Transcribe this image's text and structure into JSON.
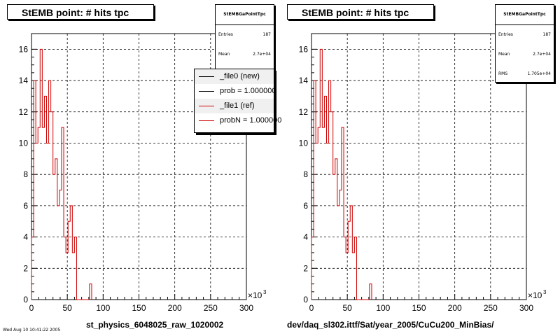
{
  "panels": [
    {
      "title": "StEMB point: # hits tpc",
      "x_axis_title": "st_physics_6048025_raw_1020002",
      "stats": {
        "name": "StEMBGaPointTpc",
        "rows": [
          {
            "label": "Entries",
            "value": "187"
          },
          {
            "label": "Mean",
            "value": "2.7e+04"
          }
        ]
      },
      "legend": [
        {
          "label": "_file0 (new)",
          "color": "#000000"
        },
        {
          "label": "prob = 1.000000",
          "color": "#000000"
        },
        {
          "label": "_file1 (ref)",
          "color": "#cc0000"
        },
        {
          "label": "probN = 1.000000",
          "color": "#cc0000"
        }
      ]
    },
    {
      "title": "StEMB point: # hits tpc",
      "x_axis_title": "dev/daq_sl302.ittf/Sat/year_2005/CuCu200_MinBias/",
      "stats": {
        "name": "StEMBGaPointTpc",
        "rows": [
          {
            "label": "Entries",
            "value": "187"
          },
          {
            "label": "Mean",
            "value": "2.7e+04"
          },
          {
            "label": "RMS",
            "value": "1.705e+04"
          }
        ]
      },
      "legend": []
    }
  ],
  "footer_left": "Wed Aug 10 10:41:22 2005",
  "chart_data": [
    {
      "type": "histogram",
      "title": "StEMB point: # hits tpc",
      "xlabel": "st_physics_6048025_raw_1020002",
      "x_multiplier": "×10^3",
      "xlim": [
        0,
        300
      ],
      "ylim": [
        0,
        17
      ],
      "x_ticks": [
        0,
        50,
        100,
        150,
        200,
        250,
        300
      ],
      "y_ticks": [
        0,
        2,
        4,
        6,
        8,
        10,
        12,
        14,
        16
      ],
      "grid": true,
      "bin_width": 3,
      "bin_start": 0,
      "series": [
        {
          "name": "_file1 (ref)",
          "color": "#cc0000",
          "values": [
            4,
            14,
            10,
            11,
            16,
            11,
            13,
            10,
            14,
            12,
            8,
            9,
            6,
            7,
            11,
            4,
            3,
            5,
            6,
            3,
            4,
            0,
            0,
            0,
            0,
            0,
            0,
            1
          ]
        }
      ]
    },
    {
      "type": "histogram",
      "title": "StEMB point: # hits tpc",
      "xlabel": "dev/daq_sl302.ittf/Sat/year_2005/CuCu200_MinBias/",
      "x_multiplier": "×10^3",
      "xlim": [
        0,
        300
      ],
      "ylim": [
        0,
        17
      ],
      "x_ticks": [
        0,
        50,
        100,
        150,
        200,
        250,
        300
      ],
      "y_ticks": [
        0,
        2,
        4,
        6,
        8,
        10,
        12,
        14,
        16
      ],
      "grid": true,
      "bin_width": 3,
      "bin_start": 0,
      "series": [
        {
          "name": "histogram",
          "color": "#cc0000",
          "values": [
            4,
            14,
            10,
            11,
            16,
            11,
            13,
            10,
            14,
            12,
            8,
            9,
            6,
            7,
            11,
            4,
            3,
            5,
            6,
            3,
            4,
            0,
            0,
            0,
            0,
            0,
            0,
            1
          ]
        }
      ]
    }
  ]
}
